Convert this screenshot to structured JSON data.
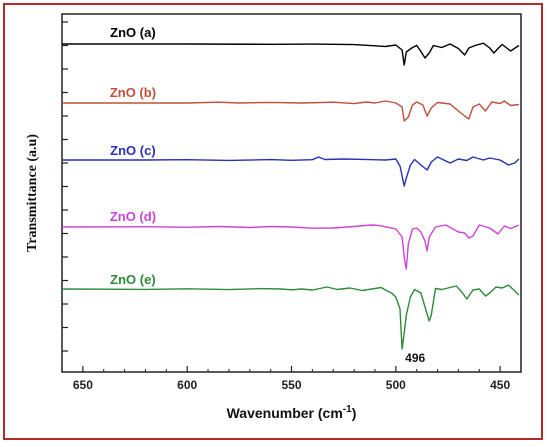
{
  "chart_data": {
    "type": "line",
    "xlabel": "Wavenumber (cm",
    "xlabel_sup": "-1",
    "xlabel_close": ")",
    "ylabel": "Transmittance (a.u)",
    "xlim": [
      660,
      440
    ],
    "x_ticks": [
      650,
      600,
      550,
      500,
      450
    ],
    "grid": false,
    "legend": "labels above each trace",
    "annotations": [
      {
        "text": "496",
        "x": 496
      }
    ],
    "series": [
      {
        "name": "ZnO (a)",
        "color": "#000000",
        "x_label": 626,
        "offset": 0,
        "points": [
          [
            660,
            0
          ],
          [
            600,
            0
          ],
          [
            560,
            0.3
          ],
          [
            540,
            0.1
          ],
          [
            520,
            0.6
          ],
          [
            510,
            1.8
          ],
          [
            505,
            2.5
          ],
          [
            500,
            1.0
          ],
          [
            497,
            6
          ],
          [
            496,
            21
          ],
          [
            495,
            8
          ],
          [
            492,
            3.5
          ],
          [
            490,
            1.4
          ],
          [
            488,
            7.5
          ],
          [
            486,
            14
          ],
          [
            484,
            9
          ],
          [
            482,
            1.5
          ],
          [
            478,
            3.5
          ],
          [
            474,
            0
          ],
          [
            470,
            4.5
          ],
          [
            467,
            11
          ],
          [
            465,
            4
          ],
          [
            462,
            1.5
          ],
          [
            458,
            -0.8
          ],
          [
            455,
            4
          ],
          [
            453,
            9
          ],
          [
            451,
            4.5
          ],
          [
            449,
            0.5
          ],
          [
            445,
            7
          ],
          [
            441,
            1.5
          ]
        ]
      },
      {
        "name": "ZnO (b)",
        "color": "#c0503a",
        "x_label": 626,
        "offset": 0,
        "points": [
          [
            660,
            0
          ],
          [
            600,
            0
          ],
          [
            585,
            -0.8
          ],
          [
            575,
            0
          ],
          [
            560,
            -0.6
          ],
          [
            545,
            0
          ],
          [
            530,
            -0.8
          ],
          [
            520,
            0.6
          ],
          [
            514,
            -1
          ],
          [
            510,
            0
          ],
          [
            505,
            -2
          ],
          [
            500,
            0
          ],
          [
            497,
            4
          ],
          [
            496,
            18
          ],
          [
            494,
            14
          ],
          [
            492,
            2
          ],
          [
            490,
            -1
          ],
          [
            487,
            2
          ],
          [
            485,
            13
          ],
          [
            483,
            5
          ],
          [
            480,
            -0.5
          ],
          [
            474,
            1
          ],
          [
            470,
            8
          ],
          [
            467,
            13
          ],
          [
            465,
            16
          ],
          [
            463,
            4
          ],
          [
            460,
            1
          ],
          [
            457,
            8
          ],
          [
            454,
            -1
          ],
          [
            450,
            0.5
          ],
          [
            448,
            -2
          ],
          [
            445,
            2.5
          ],
          [
            441,
            1.5
          ]
        ]
      },
      {
        "name": "ZnO (c)",
        "color": "#2a2fb8",
        "x_label": 626,
        "offset": 0,
        "points": [
          [
            660,
            0
          ],
          [
            620,
            0
          ],
          [
            600,
            -0.3
          ],
          [
            580,
            0.4
          ],
          [
            560,
            -0.4
          ],
          [
            550,
            0.3
          ],
          [
            540,
            -0.3
          ],
          [
            537,
            -3
          ],
          [
            534,
            -0.5
          ],
          [
            525,
            -1
          ],
          [
            515,
            -0.6
          ],
          [
            505,
            0
          ],
          [
            500,
            -1
          ],
          [
            498,
            6
          ],
          [
            497,
            16
          ],
          [
            496,
            26
          ],
          [
            495,
            18
          ],
          [
            493,
            5
          ],
          [
            491,
            -0.5
          ],
          [
            488,
            5
          ],
          [
            485,
            10
          ],
          [
            483,
            2
          ],
          [
            480,
            -3
          ],
          [
            477,
            0
          ],
          [
            474,
            3
          ],
          [
            470,
            -1
          ],
          [
            466,
            0.5
          ],
          [
            463,
            -3
          ],
          [
            458,
            0
          ],
          [
            455,
            -2
          ],
          [
            450,
            0
          ],
          [
            446,
            5
          ],
          [
            443,
            3
          ],
          [
            441,
            -1
          ]
        ]
      },
      {
        "name": "ZnO (d)",
        "color": "#cc44d8",
        "x_label": 626,
        "offset": 0,
        "points": [
          [
            660,
            0
          ],
          [
            620,
            -0.3
          ],
          [
            600,
            0.3
          ],
          [
            585,
            -0.5
          ],
          [
            570,
            0.5
          ],
          [
            560,
            -0.5
          ],
          [
            550,
            0
          ],
          [
            540,
            1.2
          ],
          [
            530,
            1
          ],
          [
            520,
            -0.5
          ],
          [
            512,
            -2
          ],
          [
            508,
            -1.5
          ],
          [
            500,
            2
          ],
          [
            497,
            10
          ],
          [
            496,
            30
          ],
          [
            495,
            42
          ],
          [
            494,
            17
          ],
          [
            492,
            2
          ],
          [
            490,
            1
          ],
          [
            488,
            5
          ],
          [
            486,
            14
          ],
          [
            485,
            24
          ],
          [
            484,
            10
          ],
          [
            481,
            0
          ],
          [
            476,
            -2
          ],
          [
            470,
            5
          ],
          [
            467,
            6
          ],
          [
            465,
            11
          ],
          [
            463,
            9
          ],
          [
            460,
            -2
          ],
          [
            455,
            1
          ],
          [
            451,
            7
          ],
          [
            448,
            -1
          ],
          [
            445,
            1.5
          ],
          [
            441,
            -2
          ]
        ]
      },
      {
        "name": "ZnO (e)",
        "color": "#2e8b3a",
        "x_label": 626,
        "offset": 0,
        "points": [
          [
            660,
            0
          ],
          [
            620,
            0.4
          ],
          [
            600,
            -0.2
          ],
          [
            580,
            0.6
          ],
          [
            565,
            -0.4
          ],
          [
            555,
            0
          ],
          [
            550,
            0.8
          ],
          [
            545,
            0
          ],
          [
            540,
            1
          ],
          [
            533,
            -2
          ],
          [
            528,
            0.5
          ],
          [
            522,
            -1
          ],
          [
            516,
            1.5
          ],
          [
            510,
            -0.5
          ],
          [
            507,
            -1.5
          ],
          [
            505,
            1
          ],
          [
            502,
            4
          ],
          [
            500,
            8
          ],
          [
            498,
            20
          ],
          [
            497,
            60
          ],
          [
            496,
            44
          ],
          [
            495,
            26
          ],
          [
            493,
            8
          ],
          [
            491,
            0.5
          ],
          [
            488,
            4
          ],
          [
            486,
            18
          ],
          [
            484,
            32
          ],
          [
            483,
            26
          ],
          [
            481,
            -0.5
          ],
          [
            478,
            0.5
          ],
          [
            475,
            -1
          ],
          [
            471,
            -3
          ],
          [
            468,
            4
          ],
          [
            466,
            10
          ],
          [
            463,
            1
          ],
          [
            460,
            0
          ],
          [
            457,
            7
          ],
          [
            455,
            4
          ],
          [
            452,
            -2
          ],
          [
            449,
            -1
          ],
          [
            446,
            -4
          ],
          [
            443,
            2
          ],
          [
            441,
            6
          ]
        ]
      }
    ]
  }
}
